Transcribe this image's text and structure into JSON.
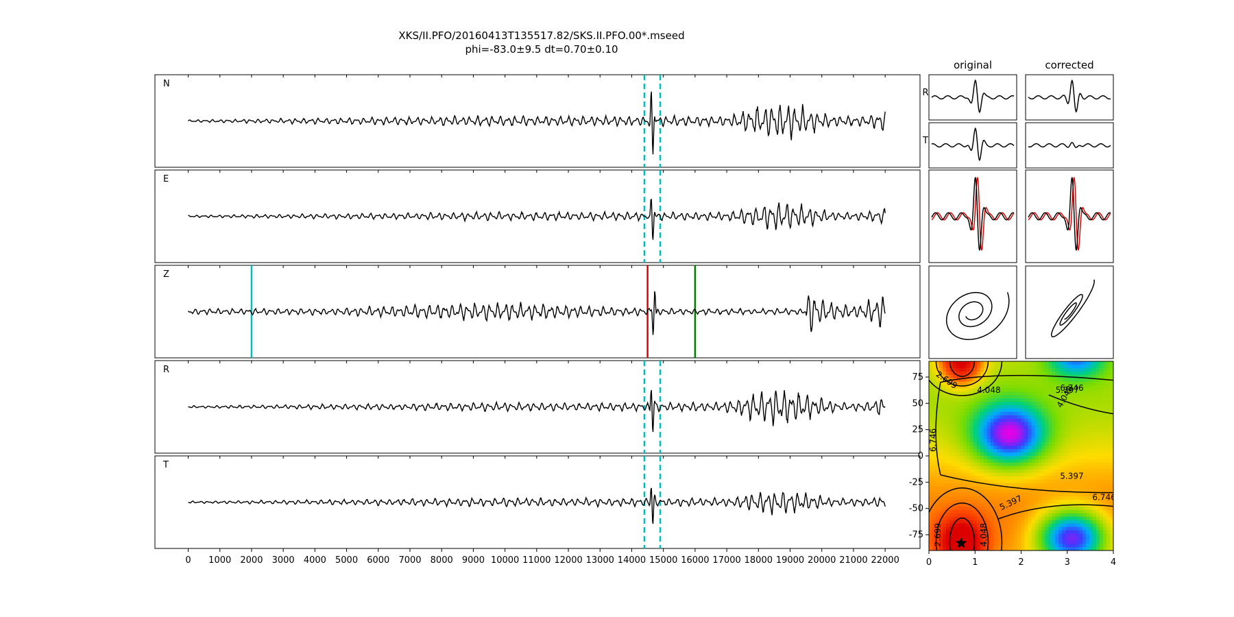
{
  "chart_data": {
    "type": "line",
    "title": "XKS/II.PFO/20160413T135517.82/SKS.II.PFO.00*.mseed",
    "subtitle": "phi=-83.0±9.5 dt=0.70±0.10",
    "traces": {
      "type": "line",
      "xlim": [
        -1050,
        23100
      ],
      "xticks": [
        0,
        1000,
        2000,
        3000,
        4000,
        5000,
        6000,
        7000,
        8000,
        9000,
        10000,
        11000,
        12000,
        13000,
        14000,
        15000,
        16000,
        17000,
        18000,
        19000,
        20000,
        21000,
        22000
      ],
      "x_range": [
        0,
        22000
      ],
      "window_start": 14400,
      "window_end": 14900,
      "panels": [
        {
          "label": "N",
          "peak_x": 14650,
          "peak_amp": 0.55,
          "burst_x": 16000,
          "base_amp": 0.12,
          "late_amp": 0.45,
          "window": true
        },
        {
          "label": "E",
          "peak_x": 14650,
          "peak_amp": 0.35,
          "burst_x": 16100,
          "base_amp": 0.1,
          "late_amp": 0.35,
          "window": true
        },
        {
          "label": "Z",
          "peak_x": 14700,
          "peak_amp": 0.4,
          "burst_x": 19500,
          "base_amp": 0.18,
          "late_amp": 0.8,
          "window": false
        },
        {
          "label": "R",
          "peak_x": 14650,
          "peak_amp": 0.4,
          "burst_x": 16000,
          "base_amp": 0.1,
          "late_amp": 0.45,
          "window": true
        },
        {
          "label": "T",
          "peak_x": 14650,
          "peak_amp": 0.35,
          "burst_x": 16100,
          "base_amp": 0.1,
          "late_amp": 0.3,
          "window": true
        }
      ],
      "z_markers": [
        {
          "x": 2000,
          "color": "#00bcbc"
        },
        {
          "x": 14500,
          "color": "#e00000"
        },
        {
          "x": 16000,
          "color": "#007a00"
        }
      ]
    },
    "particle_motion": {
      "headers": [
        "original",
        "corrected"
      ],
      "row_labels": [
        "R",
        "T"
      ]
    },
    "error_surface": {
      "type": "heatmap",
      "xlim": [
        0,
        4
      ],
      "ylim": [
        -90,
        90
      ],
      "xticks": [
        0,
        1,
        2,
        3,
        4
      ],
      "yticks": [
        75,
        50,
        25,
        0,
        -25,
        -50,
        -75
      ],
      "contour_labels": [
        "2.699",
        "4.048",
        "5.397",
        "6.746"
      ],
      "best_fit": {
        "dt": 0.7,
        "phi": -83.0
      }
    }
  },
  "colors": {
    "trace": "#000000",
    "window_line": "#00bcbc",
    "original_overlay": "#e00000"
  }
}
